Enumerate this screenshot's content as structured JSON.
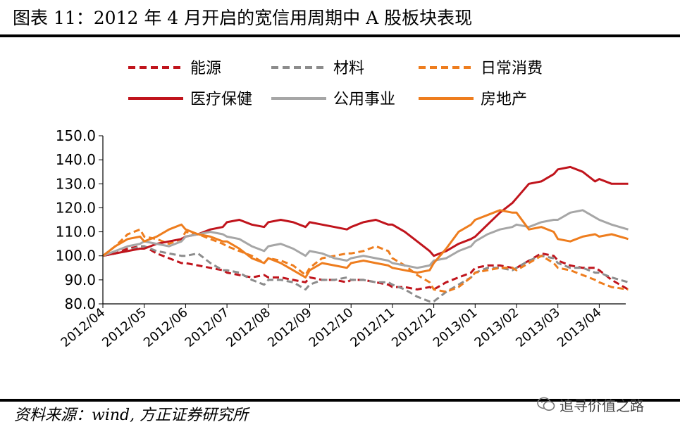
{
  "header": {
    "title": "图表 11：2012 年 4 月开启的宽信用周期中 A 股板块表现"
  },
  "footer": {
    "source": "资料来源：wind, 方正证券研究所",
    "watermark": "追寻价值之路"
  },
  "chart_data": {
    "type": "line",
    "title": "",
    "xlabel": "",
    "ylabel": "",
    "ylim": [
      80,
      150
    ],
    "yticks": [
      "80.0",
      "90.0",
      "100.0",
      "110.0",
      "120.0",
      "130.0",
      "140.0",
      "150.0"
    ],
    "x_tick_labels": [
      "2012/04",
      "2012/05",
      "2012/06",
      "2012/07",
      "2012/08",
      "2012/09",
      "2012/10",
      "2012/11",
      "2012/12",
      "2013/01",
      "2013/02",
      "2013/03",
      "2013/04"
    ],
    "x_range_months": [
      0,
      12.7
    ],
    "grid": false,
    "legend_placement": "top",
    "series": [
      {
        "name": "能源",
        "color": "#c0141c",
        "dash": true,
        "x": [
          0,
          0.3,
          0.6,
          0.9,
          1.0,
          1.3,
          1.6,
          1.9,
          2.0,
          2.3,
          2.6,
          2.9,
          3.0,
          3.3,
          3.6,
          3.9,
          4.0,
          4.3,
          4.6,
          4.9,
          5.0,
          5.3,
          5.6,
          5.9,
          6.0,
          6.3,
          6.6,
          6.9,
          7.0,
          7.3,
          7.6,
          7.9,
          8.0,
          8.3,
          8.6,
          8.9,
          9.0,
          9.3,
          9.6,
          9.9,
          10.0,
          10.3,
          10.6,
          10.9,
          11.0,
          11.3,
          11.6,
          11.9,
          12.0,
          12.3,
          12.7
        ],
        "y": [
          100,
          101,
          103,
          104,
          104,
          101,
          99,
          97,
          97,
          96,
          95,
          94,
          93,
          92,
          91,
          92,
          91,
          91,
          90,
          89,
          91,
          90,
          90,
          89,
          90,
          90,
          89,
          88,
          87,
          87,
          86,
          87,
          86,
          89,
          91,
          93,
          95,
          96,
          96,
          95,
          95,
          98,
          101,
          100,
          98,
          96,
          95,
          95,
          94,
          90,
          86
        ]
      },
      {
        "name": "材料",
        "color": "#8c8c8c",
        "dash": true,
        "x": [
          0,
          0.3,
          0.6,
          0.9,
          1.0,
          1.3,
          1.6,
          1.9,
          2.0,
          2.3,
          2.6,
          2.9,
          3.0,
          3.3,
          3.6,
          3.9,
          4.0,
          4.3,
          4.6,
          4.9,
          5.0,
          5.3,
          5.6,
          5.9,
          6.0,
          6.3,
          6.6,
          6.9,
          7.0,
          7.3,
          7.6,
          7.9,
          8.0,
          8.3,
          8.6,
          8.9,
          9.0,
          9.3,
          9.6,
          9.9,
          10.0,
          10.3,
          10.6,
          10.9,
          11.0,
          11.3,
          11.6,
          11.9,
          12.0,
          12.3,
          12.7
        ],
        "y": [
          100,
          101,
          102,
          104,
          104,
          102,
          101,
          100,
          100,
          101,
          97,
          94,
          94,
          93,
          90,
          88,
          90,
          90,
          89,
          86,
          88,
          90,
          90,
          91,
          90,
          90,
          89,
          89,
          88,
          86,
          83,
          81,
          81,
          85,
          88,
          91,
          93,
          95,
          95,
          94,
          95,
          98,
          100,
          99,
          97,
          95,
          95,
          93,
          93,
          91,
          89
        ]
      },
      {
        "name": "日常消费",
        "color": "#ee7d1e",
        "dash": true,
        "x": [
          0,
          0.3,
          0.6,
          0.9,
          1.0,
          1.3,
          1.6,
          1.9,
          2.0,
          2.3,
          2.6,
          2.9,
          3.0,
          3.3,
          3.6,
          3.9,
          4.0,
          4.3,
          4.6,
          4.9,
          5.0,
          5.3,
          5.6,
          5.9,
          6.0,
          6.3,
          6.6,
          6.9,
          7.0,
          7.3,
          7.6,
          7.9,
          8.0,
          8.3,
          8.6,
          8.9,
          9.0,
          9.3,
          9.6,
          9.9,
          10.0,
          10.3,
          10.6,
          10.9,
          11.0,
          11.3,
          11.6,
          11.9,
          12.0,
          12.3,
          12.7
        ],
        "y": [
          100,
          104,
          109,
          111,
          108,
          107,
          105,
          107,
          110,
          109,
          107,
          105,
          104,
          102,
          100,
          97,
          99,
          98,
          96,
          92,
          95,
          99,
          100,
          101,
          101,
          102,
          104,
          102,
          99,
          96,
          92,
          89,
          86,
          85,
          87,
          91,
          93,
          94,
          95,
          95,
          94,
          97,
          100,
          97,
          95,
          94,
          92,
          90,
          89,
          87,
          86
        ]
      },
      {
        "name": "医疗保健",
        "color": "#c0141c",
        "dash": false,
        "x": [
          0,
          0.3,
          0.6,
          0.9,
          1.0,
          1.3,
          1.6,
          1.9,
          2.0,
          2.3,
          2.6,
          2.9,
          3.0,
          3.3,
          3.6,
          3.9,
          4.0,
          4.3,
          4.6,
          4.9,
          5.0,
          5.3,
          5.6,
          5.9,
          6.0,
          6.3,
          6.6,
          6.9,
          7.0,
          7.3,
          7.6,
          7.9,
          8.0,
          8.3,
          8.6,
          8.9,
          9.0,
          9.3,
          9.6,
          9.9,
          10.0,
          10.3,
          10.6,
          10.9,
          11.0,
          11.3,
          11.6,
          11.9,
          12.0,
          12.3,
          12.7
        ],
        "y": [
          100,
          101,
          102,
          103,
          103,
          105,
          106,
          107,
          108,
          109,
          111,
          112,
          114,
          115,
          113,
          112,
          114,
          115,
          114,
          112,
          114,
          113,
          112,
          111,
          112,
          114,
          115,
          113,
          113,
          110,
          106,
          102,
          100,
          102,
          105,
          107,
          108,
          113,
          118,
          122,
          124,
          130,
          131,
          134,
          136,
          137,
          135,
          131,
          132,
          130,
          130
        ]
      },
      {
        "name": "公用事业",
        "color": "#a6a6a6",
        "dash": false,
        "x": [
          0,
          0.3,
          0.6,
          0.9,
          1.0,
          1.3,
          1.6,
          1.9,
          2.0,
          2.3,
          2.6,
          2.9,
          3.0,
          3.3,
          3.6,
          3.9,
          4.0,
          4.3,
          4.6,
          4.9,
          5.0,
          5.3,
          5.6,
          5.9,
          6.0,
          6.3,
          6.6,
          6.9,
          7.0,
          7.3,
          7.6,
          7.9,
          8.0,
          8.3,
          8.6,
          8.9,
          9.0,
          9.3,
          9.6,
          9.9,
          10.0,
          10.3,
          10.6,
          10.9,
          11.0,
          11.3,
          11.6,
          11.9,
          12.0,
          12.3,
          12.7
        ],
        "y": [
          100,
          102,
          104,
          105,
          106,
          105,
          104,
          106,
          108,
          109,
          110,
          109,
          108,
          107,
          104,
          102,
          104,
          105,
          103,
          100,
          102,
          101,
          99,
          98,
          99,
          100,
          99,
          98,
          97,
          96,
          95,
          96,
          98,
          99,
          102,
          104,
          106,
          109,
          111,
          112,
          113,
          112,
          114,
          115,
          115,
          118,
          119,
          116,
          115,
          113,
          111
        ]
      },
      {
        "name": "房地产",
        "color": "#ee7d1e",
        "dash": false,
        "x": [
          0,
          0.3,
          0.6,
          0.9,
          1.0,
          1.3,
          1.6,
          1.9,
          2.0,
          2.3,
          2.6,
          2.9,
          3.0,
          3.3,
          3.6,
          3.9,
          4.0,
          4.3,
          4.6,
          4.9,
          5.0,
          5.3,
          5.6,
          5.9,
          6.0,
          6.3,
          6.6,
          6.9,
          7.0,
          7.3,
          7.6,
          7.9,
          8.0,
          8.3,
          8.6,
          8.9,
          9.0,
          9.3,
          9.6,
          9.9,
          10.0,
          10.3,
          10.6,
          10.9,
          11.0,
          11.3,
          11.6,
          11.9,
          12.0,
          12.3,
          12.7
        ],
        "y": [
          100,
          104,
          107,
          108,
          106,
          108,
          111,
          113,
          111,
          109,
          108,
          106,
          106,
          103,
          99,
          97,
          99,
          97,
          94,
          91,
          94,
          97,
          96,
          95,
          97,
          98,
          97,
          96,
          95,
          94,
          93,
          94,
          97,
          103,
          110,
          113,
          115,
          117,
          119,
          118,
          118,
          111,
          112,
          110,
          107,
          106,
          108,
          109,
          108,
          109,
          107
        ]
      }
    ]
  }
}
